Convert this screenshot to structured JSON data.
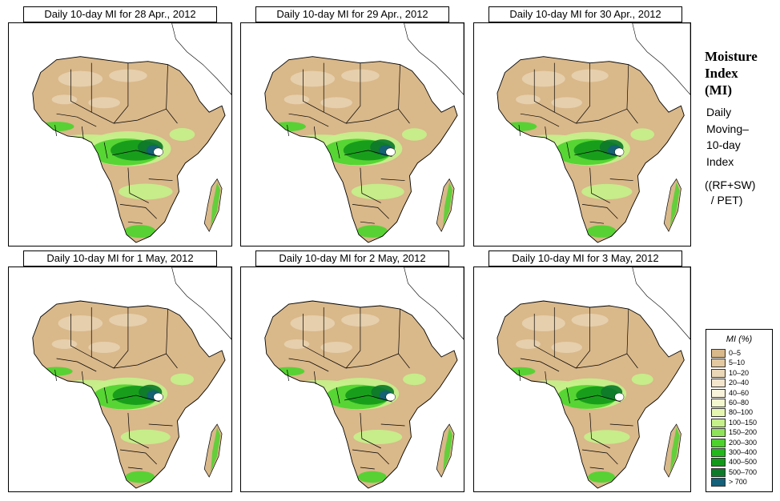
{
  "panels": [
    {
      "title": "Daily 10-day MI for  28 Apr., 2012",
      "wetness": 1.0
    },
    {
      "title": "Daily 10-day MI for  29 Apr., 2012",
      "wetness": 0.95
    },
    {
      "title": "Daily 10-day MI for  30 Apr., 2012",
      "wetness": 0.92
    },
    {
      "title": "Daily 10-day MI for  1 May, 2012",
      "wetness": 0.82
    },
    {
      "title": "Daily 10-day MI for  2 May, 2012",
      "wetness": 0.78
    },
    {
      "title": "Daily 10-day MI for  3 May, 2012",
      "wetness": 0.72
    }
  ],
  "sidebar": {
    "title_lines": [
      "Moisture",
      "Index",
      "(MI)"
    ],
    "desc_lines": [
      "Daily",
      "Moving–",
      "10-day",
      "Index"
    ],
    "formula_lines": [
      "((RF+SW)",
      "  / PET)"
    ]
  },
  "legend": {
    "title": "MI (%)",
    "items": [
      {
        "label": "0–5",
        "color": "#d9b88a"
      },
      {
        "label": "5–10",
        "color": "#e3c8a0"
      },
      {
        "label": "10–20",
        "color": "#ead7b7"
      },
      {
        "label": "20–40",
        "color": "#f3e6cd"
      },
      {
        "label": "40–60",
        "color": "#faf3dc"
      },
      {
        "label": "60–80",
        "color": "#f3f8cf"
      },
      {
        "label": "80–100",
        "color": "#e6f7b0"
      },
      {
        "label": "100–150",
        "color": "#c6f08a"
      },
      {
        "label": "150–200",
        "color": "#8fe35a"
      },
      {
        "label": "200–300",
        "color": "#4dd22c"
      },
      {
        "label": "300–400",
        "color": "#22b81c"
      },
      {
        "label": "400–500",
        "color": "#13991a"
      },
      {
        "label": "500–700",
        "color": "#0d7a2a"
      },
      {
        "label": "> 700",
        "color": "#15607a"
      }
    ]
  },
  "colors": {
    "desert": "#d9b88a",
    "sand_light": "#ead7b7",
    "pale": "#f3f8cf",
    "light_green": "#c6f08a",
    "green": "#4dd22c",
    "dark_green": "#13991a",
    "forest": "#0d7a2a",
    "teal": "#15607a",
    "outline": "#000000"
  }
}
